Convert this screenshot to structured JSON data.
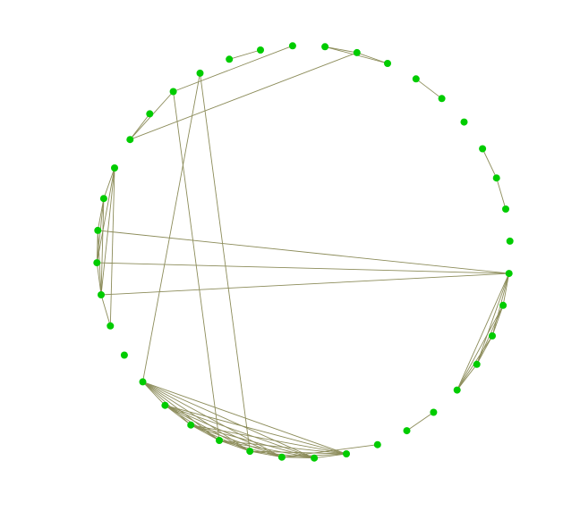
{
  "graph": {
    "layout": "circular",
    "colors": {
      "node": "#00cc00",
      "edge": "#8c8c5a",
      "background": "#ffffff"
    },
    "node_count": 40,
    "edges": [
      [
        0,
        1
      ],
      [
        0,
        2
      ],
      [
        1,
        2
      ],
      [
        1,
        33
      ],
      [
        3,
        4
      ],
      [
        6,
        7
      ],
      [
        7,
        8
      ],
      [
        10,
        11
      ],
      [
        10,
        12
      ],
      [
        10,
        13
      ],
      [
        10,
        14
      ],
      [
        10,
        28
      ],
      [
        10,
        29
      ],
      [
        10,
        30
      ],
      [
        11,
        12
      ],
      [
        11,
        13
      ],
      [
        11,
        14
      ],
      [
        12,
        13
      ],
      [
        12,
        14
      ],
      [
        13,
        14
      ],
      [
        15,
        16
      ],
      [
        17,
        20
      ],
      [
        18,
        19
      ],
      [
        18,
        20
      ],
      [
        18,
        21
      ],
      [
        18,
        22
      ],
      [
        18,
        23
      ],
      [
        18,
        24
      ],
      [
        18,
        25
      ],
      [
        19,
        20
      ],
      [
        19,
        21
      ],
      [
        19,
        22
      ],
      [
        19,
        23
      ],
      [
        19,
        24
      ],
      [
        19,
        25
      ],
      [
        20,
        21
      ],
      [
        20,
        22
      ],
      [
        20,
        23
      ],
      [
        20,
        24
      ],
      [
        20,
        25
      ],
      [
        21,
        22
      ],
      [
        21,
        23
      ],
      [
        21,
        24
      ],
      [
        21,
        25
      ],
      [
        21,
        36
      ],
      [
        22,
        23
      ],
      [
        22,
        24
      ],
      [
        22,
        25
      ],
      [
        22,
        35
      ],
      [
        23,
        24
      ],
      [
        23,
        25
      ],
      [
        24,
        25
      ],
      [
        25,
        36
      ],
      [
        27,
        28
      ],
      [
        27,
        32
      ],
      [
        28,
        29
      ],
      [
        28,
        30
      ],
      [
        28,
        31
      ],
      [
        28,
        32
      ],
      [
        29,
        30
      ],
      [
        29,
        31
      ],
      [
        29,
        32
      ],
      [
        30,
        31
      ],
      [
        31,
        32
      ],
      [
        33,
        34
      ],
      [
        35,
        39
      ],
      [
        35,
        33
      ],
      [
        37,
        38
      ]
    ]
  }
}
